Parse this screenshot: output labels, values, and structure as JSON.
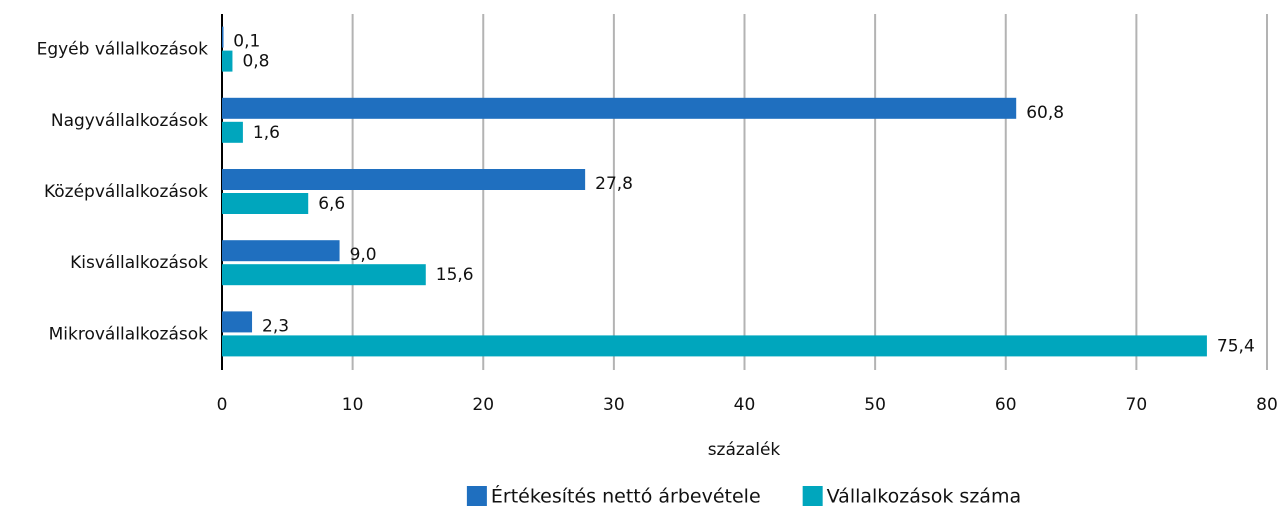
{
  "chart_data": {
    "type": "bar",
    "orientation": "horizontal",
    "categories": [
      "Egyéb vállalkozások",
      "Nagyvállalkozások",
      "Középvállalkozások",
      "Kisvállalkozások",
      "Mikrovállalkozások"
    ],
    "series": [
      {
        "name": "Értékesítés nettó árbevétele",
        "color": "#1f6fbf",
        "values": [
          0.1,
          60.8,
          27.8,
          9.0,
          2.3
        ],
        "value_labels": [
          "0,1",
          "60,8",
          "27,8",
          "9,0",
          "2,3"
        ]
      },
      {
        "name": "Vállalkozások száma",
        "color": "#00a6bd",
        "values": [
          0.8,
          1.6,
          6.6,
          15.6,
          75.4
        ],
        "value_labels": [
          "0,8",
          "1,6",
          "6,6",
          "15,6",
          "75,4"
        ]
      }
    ],
    "xlabel": "százalék",
    "xlim": [
      0,
      80
    ],
    "xticks": [
      0,
      10,
      20,
      30,
      40,
      50,
      60,
      70,
      80
    ],
    "grid": true,
    "legend": "bottom"
  }
}
